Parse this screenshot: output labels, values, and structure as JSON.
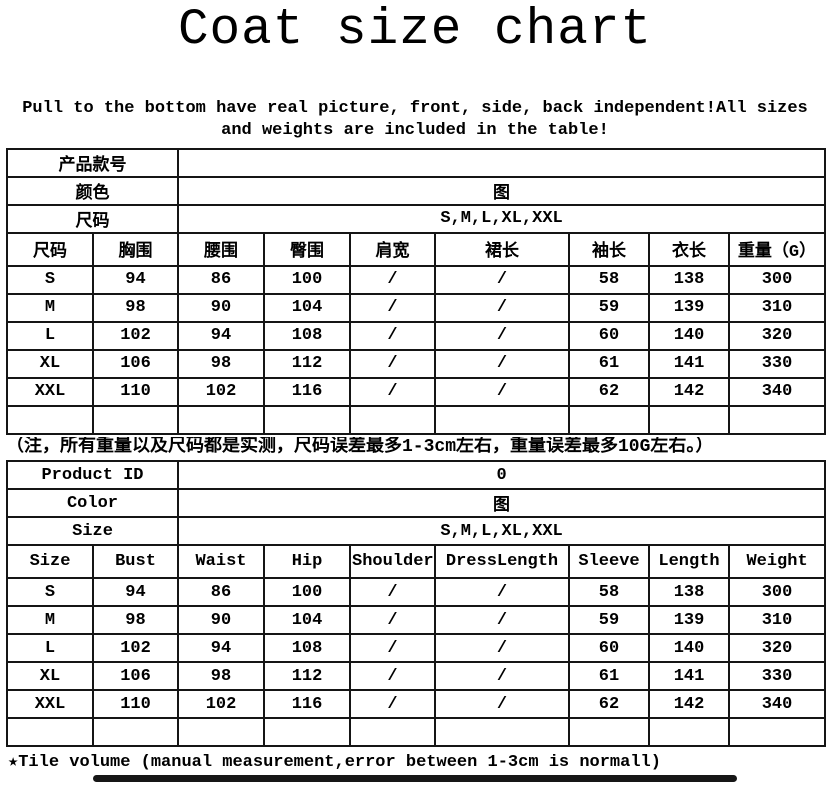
{
  "page": {
    "title": "Coat size chart",
    "subtitle": "Pull to the bottom have real picture, front, side, back independent!All sizes and weights are included in the table!",
    "note_cn": "（注，所有重量以及尺码都是实测，尺码误差最多1-3cm左右，重量误差最多10G左右。）",
    "footer_note": "★Tile volume (manual measurement,error between 1-3cm is normall)"
  },
  "colors": {
    "ink": "#000000",
    "paper": "#ffffff",
    "bottom_bar": "#161616"
  },
  "size_table_cn": {
    "info_rows": [
      {
        "label": "产品款号",
        "value": ""
      },
      {
        "label": "颜色",
        "value": "图"
      },
      {
        "label": "尺码",
        "value": "S,M,L,XL,XXL"
      }
    ],
    "columns": [
      "尺码",
      "胸围",
      "腰围",
      "臀围",
      "肩宽",
      "裙长",
      "袖长",
      "衣长",
      "重量（G）"
    ],
    "rows": [
      [
        "S",
        "94",
        "86",
        "100",
        "/",
        "/",
        "58",
        "138",
        "300"
      ],
      [
        "M",
        "98",
        "90",
        "104",
        "/",
        "/",
        "59",
        "139",
        "310"
      ],
      [
        "L",
        "102",
        "94",
        "108",
        "/",
        "/",
        "60",
        "140",
        "320"
      ],
      [
        "XL",
        "106",
        "98",
        "112",
        "/",
        "/",
        "61",
        "141",
        "330"
      ],
      [
        "XXL",
        "110",
        "102",
        "116",
        "/",
        "/",
        "62",
        "142",
        "340"
      ],
      [
        "",
        "",
        "",
        "",
        "",
        "",
        "",
        "",
        ""
      ]
    ]
  },
  "size_table_en": {
    "info_rows": [
      {
        "label": "Product ID",
        "value": "0"
      },
      {
        "label": "Color",
        "value": "图"
      },
      {
        "label": "Size",
        "value": "S,M,L,XL,XXL"
      }
    ],
    "columns": [
      "Size",
      "Bust",
      "Waist",
      "Hip",
      "Shoulder",
      "DressLength",
      "Sleeve",
      "Length",
      "Weight"
    ],
    "rows": [
      [
        "S",
        "94",
        "86",
        "100",
        "/",
        "/",
        "58",
        "138",
        "300"
      ],
      [
        "M",
        "98",
        "90",
        "104",
        "/",
        "/",
        "59",
        "139",
        "310"
      ],
      [
        "L",
        "102",
        "94",
        "108",
        "/",
        "/",
        "60",
        "140",
        "320"
      ],
      [
        "XL",
        "106",
        "98",
        "112",
        "/",
        "/",
        "61",
        "141",
        "330"
      ],
      [
        "XXL",
        "110",
        "102",
        "116",
        "/",
        "/",
        "62",
        "142",
        "340"
      ],
      [
        "",
        "",
        "",
        "",
        "",
        "",
        "",
        "",
        ""
      ]
    ]
  }
}
